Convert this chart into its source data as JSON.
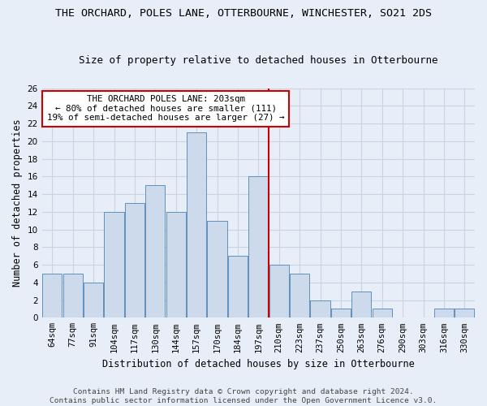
{
  "title": "THE ORCHARD, POLES LANE, OTTERBOURNE, WINCHESTER, SO21 2DS",
  "subtitle": "Size of property relative to detached houses in Otterbourne",
  "xlabel": "Distribution of detached houses by size in Otterbourne",
  "ylabel": "Number of detached properties",
  "footer_line1": "Contains HM Land Registry data © Crown copyright and database right 2024.",
  "footer_line2": "Contains public sector information licensed under the Open Government Licence v3.0.",
  "bar_labels": [
    "64sqm",
    "77sqm",
    "91sqm",
    "104sqm",
    "117sqm",
    "130sqm",
    "144sqm",
    "157sqm",
    "170sqm",
    "184sqm",
    "197sqm",
    "210sqm",
    "223sqm",
    "237sqm",
    "250sqm",
    "263sqm",
    "276sqm",
    "290sqm",
    "303sqm",
    "316sqm",
    "330sqm"
  ],
  "bar_values": [
    5,
    5,
    4,
    12,
    13,
    15,
    12,
    21,
    11,
    7,
    16,
    6,
    5,
    2,
    1,
    3,
    1,
    0,
    0,
    1,
    1
  ],
  "bar_color": "#ccdaeb",
  "bar_edge_color": "#6090bb",
  "grid_color": "#c8d4e4",
  "bg_color": "#e8eef8",
  "vline_x": 10.5,
  "vline_color": "#cc0000",
  "annotation_text": "THE ORCHARD POLES LANE: 203sqm\n← 80% of detached houses are smaller (111)\n19% of semi-detached houses are larger (27) →",
  "annotation_box_color": "#cc0000",
  "ylim": [
    0,
    26
  ],
  "yticks": [
    0,
    2,
    4,
    6,
    8,
    10,
    12,
    14,
    16,
    18,
    20,
    22,
    24,
    26
  ],
  "title_fontsize": 9.5,
  "subtitle_fontsize": 9.0,
  "axis_label_fontsize": 8.5,
  "tick_fontsize": 7.5,
  "annotation_fontsize": 7.8,
  "footer_fontsize": 6.8
}
